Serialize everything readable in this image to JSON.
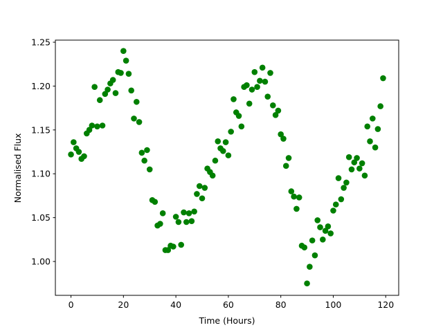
{
  "chart_data": {
    "type": "scatter",
    "xlabel": "Time (Hours)",
    "ylabel": "Normalised Flux",
    "color": "#008000",
    "x": [
      0,
      1,
      2,
      3,
      4,
      5,
      6,
      7,
      8,
      9,
      10,
      11,
      12,
      13,
      14,
      15,
      16,
      17,
      18,
      19,
      20,
      21,
      22,
      23,
      24,
      25,
      26,
      27,
      28,
      29,
      30,
      31,
      32,
      33,
      34,
      35,
      36,
      37,
      38,
      39,
      40,
      41,
      42,
      43,
      44,
      45,
      46,
      47,
      48,
      49,
      50,
      51,
      52,
      53,
      54,
      55,
      56,
      57,
      58,
      59,
      60,
      61,
      62,
      63,
      64,
      65,
      66,
      67,
      68,
      69,
      70,
      71,
      72,
      73,
      74,
      75,
      76,
      77,
      78,
      79,
      80,
      81,
      82,
      83,
      84,
      85,
      86,
      87,
      88,
      89,
      90,
      91,
      92,
      93,
      94,
      95,
      96,
      97,
      98,
      99,
      100,
      101,
      102,
      103,
      104,
      105,
      106,
      107,
      108,
      109,
      110,
      111,
      112,
      113,
      114,
      115,
      116,
      117,
      118,
      119
    ],
    "values": [
      1.122,
      1.136,
      1.129,
      1.125,
      1.117,
      1.12,
      1.146,
      1.15,
      1.155,
      1.199,
      1.154,
      1.184,
      1.155,
      1.191,
      1.196,
      1.203,
      1.207,
      1.192,
      1.216,
      1.215,
      1.24,
      1.229,
      1.214,
      1.195,
      1.163,
      1.182,
      1.159,
      1.124,
      1.115,
      1.127,
      1.105,
      1.07,
      1.068,
      1.041,
      1.043,
      1.055,
      1.013,
      1.013,
      1.018,
      1.017,
      1.051,
      1.045,
      1.019,
      1.056,
      1.045,
      1.055,
      1.046,
      1.057,
      1.077,
      1.086,
      1.072,
      1.084,
      1.106,
      1.102,
      1.098,
      1.115,
      1.137,
      1.129,
      1.126,
      1.136,
      1.121,
      1.148,
      1.185,
      1.17,
      1.166,
      1.154,
      1.199,
      1.201,
      1.18,
      1.196,
      1.216,
      1.199,
      1.206,
      1.221,
      1.205,
      1.188,
      1.215,
      1.178,
      1.167,
      1.172,
      1.145,
      1.14,
      1.109,
      1.118,
      1.08,
      1.074,
      1.06,
      1.073,
      1.018,
      1.016,
      0.975,
      0.994,
      1.024,
      1.007,
      1.047,
      1.039,
      1.025,
      1.035,
      1.04,
      1.032,
      1.058,
      1.065,
      1.095,
      1.071,
      1.084,
      1.09,
      1.119,
      1.105,
      1.113,
      1.118,
      1.106,
      1.112,
      1.098,
      1.154,
      1.137,
      1.163,
      1.13,
      1.151,
      1.177,
      1.209
    ],
    "xlim": [
      -5.95,
      124.95
    ],
    "xticks": [
      0,
      20,
      40,
      60,
      80,
      100,
      120
    ],
    "ylim": [
      0.9614,
      1.2524
    ],
    "yticks": [
      {
        "value": 1.0,
        "label": "1.00"
      },
      1.05,
      {
        "value": 1.1,
        "label": "1.10"
      },
      1.15,
      {
        "value": 1.2,
        "label": "1.20"
      },
      1.25
    ]
  }
}
